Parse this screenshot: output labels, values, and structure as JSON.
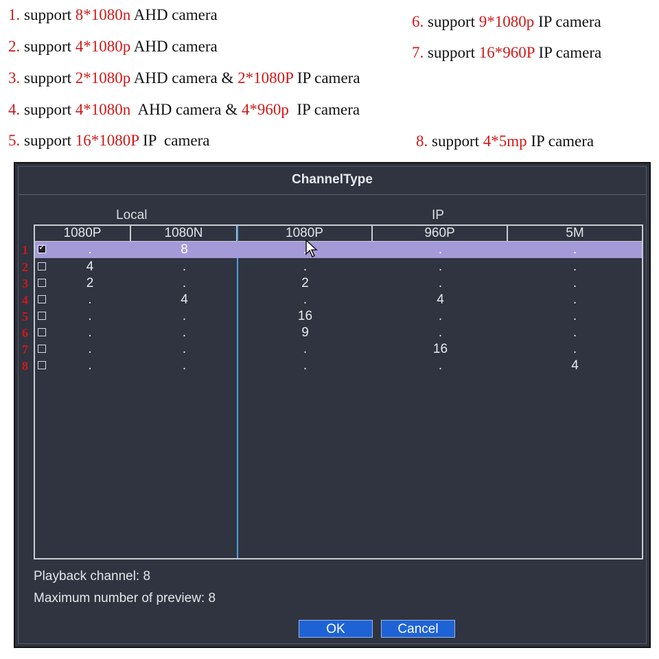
{
  "notes": [
    {
      "num": "1.",
      "pre": "support ",
      "red": "8*1080n",
      "post": " AHD camera",
      "red2": "",
      "post2": ""
    },
    {
      "num": "2.",
      "pre": "support ",
      "red": "4*1080p",
      "post": " AHD camera",
      "red2": "",
      "post2": ""
    },
    {
      "num": "3.",
      "pre": "support ",
      "red": "2*1080p",
      "post": " AHD camera & ",
      "red2": "2*1080P",
      "post2": " IP camera"
    },
    {
      "num": "4.",
      "pre": "support ",
      "red": "4*1080n",
      "post": "  AHD camera & ",
      "red2": "4*960p",
      "post2": "  IP camera"
    },
    {
      "num": "5.",
      "pre": "support ",
      "red": "16*1080P",
      "post": " IP  camera",
      "red2": "",
      "post2": ""
    },
    {
      "num": "6.",
      "pre": "support ",
      "red": "9*1080p",
      "post": " IP camera",
      "red2": "",
      "post2": ""
    },
    {
      "num": "7.",
      "pre": "support ",
      "red": "16*960P",
      "post": " IP camera",
      "red2": "",
      "post2": ""
    },
    {
      "num": "8.",
      "pre": "support ",
      "red": "4*5mp",
      "post": " IP camera",
      "red2": "",
      "post2": ""
    }
  ],
  "dialog": {
    "title": "ChannelType",
    "group_local": "Local",
    "group_ip": "IP",
    "columns": [
      "1080P",
      "1080N",
      "1080P",
      "960P",
      "5M"
    ],
    "rows": [
      {
        "num": "1",
        "checked": true,
        "values": [
          ".",
          "8",
          ".",
          ".",
          "."
        ]
      },
      {
        "num": "2",
        "checked": false,
        "values": [
          "4",
          ".",
          ".",
          ".",
          "."
        ]
      },
      {
        "num": "3",
        "checked": false,
        "values": [
          "2",
          ".",
          "2",
          ".",
          "."
        ]
      },
      {
        "num": "4",
        "checked": false,
        "values": [
          ".",
          "4",
          ".",
          "4",
          "."
        ]
      },
      {
        "num": "5",
        "checked": false,
        "values": [
          ".",
          ".",
          "16",
          ".",
          "."
        ]
      },
      {
        "num": "6",
        "checked": false,
        "values": [
          ".",
          ".",
          "9",
          ".",
          "."
        ]
      },
      {
        "num": "7",
        "checked": false,
        "values": [
          ".",
          ".",
          ".",
          "16",
          "."
        ]
      },
      {
        "num": "8",
        "checked": false,
        "values": [
          ".",
          ".",
          ".",
          ".",
          "4"
        ]
      }
    ],
    "playback": "Playback channel: 8",
    "max_preview": "Maximum number of preview: 8",
    "ok_label": "OK",
    "cancel_label": "Cancel"
  },
  "colors": {
    "accent_red": "#d01818",
    "selected_row": "#a59ad8",
    "button_blue": "#1e63d6",
    "divider_blue": "#4aa3e0"
  },
  "icons": {
    "cursor": "mouse-pointer-icon",
    "checkbox": "checkbox-icon"
  }
}
